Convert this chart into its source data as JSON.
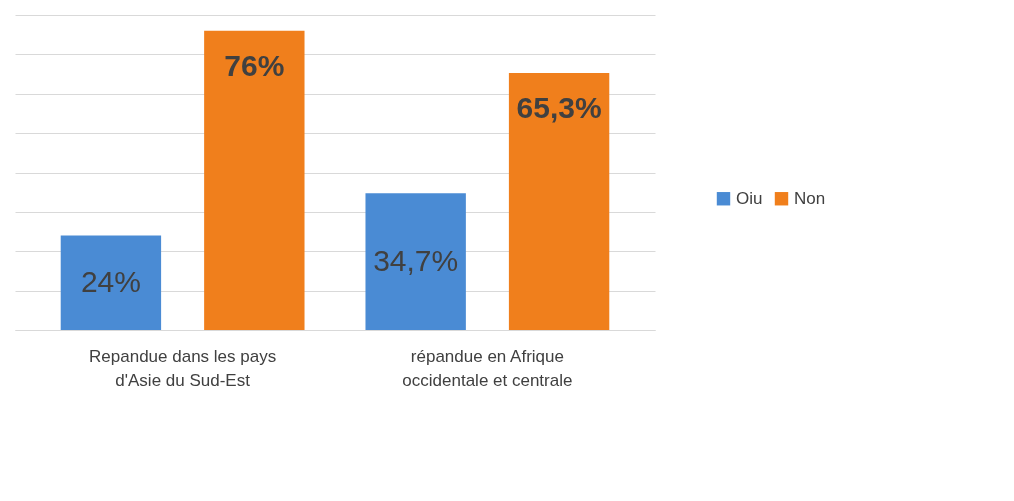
{
  "chart_data": {
    "type": "bar",
    "categories": [
      "Repandue dans les pays d'Asie du Sud-Est",
      "répandue en Afrique occidentale et centrale"
    ],
    "series": [
      {
        "name": "Oiu",
        "color": "#4a8bd4",
        "values": [
          24,
          34.7
        ],
        "value_labels": [
          "24%",
          "34,7%"
        ]
      },
      {
        "name": "Non",
        "color": "#f07f1c",
        "values": [
          76,
          65.3
        ],
        "value_labels": [
          "76%",
          "65,3%"
        ]
      }
    ],
    "ylim": [
      0,
      80
    ],
    "yticks": [
      {
        "value": 0,
        "label": null
      },
      {
        "value": 10,
        "label": null
      },
      {
        "value": 20,
        "label": null
      },
      {
        "value": 30,
        "label": null
      },
      {
        "value": 40,
        "label": null
      },
      {
        "value": 50,
        "label": null
      },
      {
        "value": 60,
        "label": null
      },
      {
        "value": 70,
        "label": null
      },
      {
        "value": 80,
        "label": null
      }
    ],
    "grid": "y",
    "legend": "right",
    "tick_labels": "x"
  }
}
